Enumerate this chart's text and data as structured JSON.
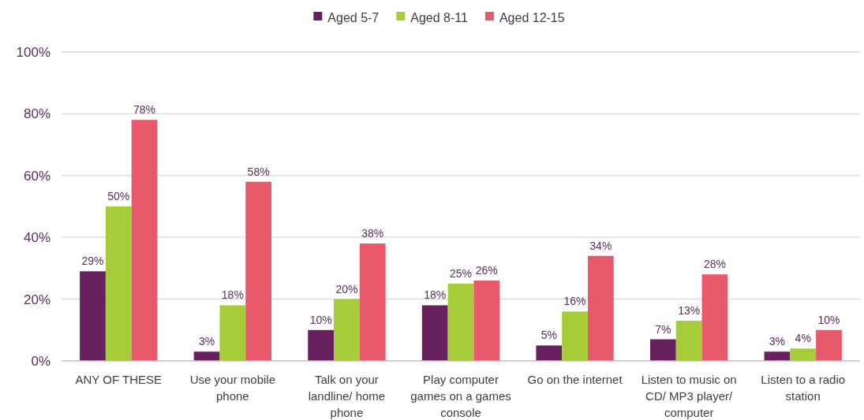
{
  "chart_data": {
    "type": "bar",
    "categories": [
      "ANY OF THESE",
      "Use your mobile phone",
      "Talk on your landline/ home phone",
      "Play computer games on a games console",
      "Go on the internet",
      "Listen to music on CD/ MP3 player/ computer",
      "Listen to a radio station"
    ],
    "series": [
      {
        "name": "Aged 5-7",
        "color": "#68215f",
        "values": [
          29,
          3,
          10,
          18,
          5,
          7,
          3
        ],
        "value_labels": [
          "29%",
          "3%",
          "10%",
          "18%",
          "5%",
          "7%",
          "3%"
        ]
      },
      {
        "name": "Aged 8-11",
        "color": "#a6cd39",
        "values": [
          50,
          18,
          20,
          25,
          16,
          13,
          4
        ],
        "value_labels": [
          "50%",
          "18%",
          "20%",
          "25%",
          "16%",
          "13%",
          "4%"
        ]
      },
      {
        "name": "Aged 12-15",
        "color": "#e8596b",
        "values": [
          78,
          58,
          38,
          26,
          34,
          28,
          10
        ],
        "value_labels": [
          "78%",
          "58%",
          "38%",
          "26%",
          "34%",
          "28%",
          "10%"
        ]
      }
    ],
    "ylim": [
      0,
      100
    ],
    "yticks": [
      {
        "value": 0,
        "label": "0%"
      },
      {
        "value": 20,
        "label": "20%"
      },
      {
        "value": 40,
        "label": "40%"
      },
      {
        "value": 60,
        "label": "60%"
      },
      {
        "value": 80,
        "label": "80%"
      },
      {
        "value": 100,
        "label": "100%"
      }
    ],
    "grid": "y",
    "legend": "top"
  }
}
